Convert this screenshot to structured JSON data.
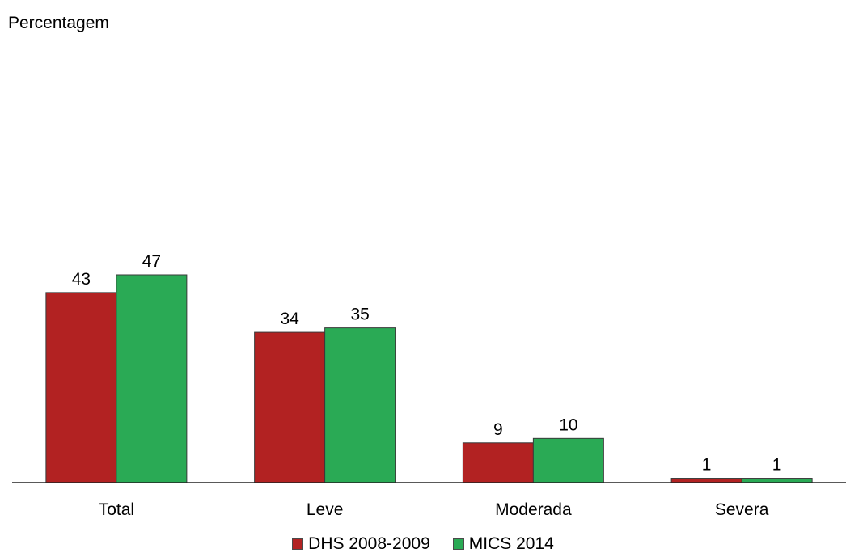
{
  "chart_data": {
    "type": "bar",
    "ylabel": "Percentagem",
    "xlabel": "",
    "title": "",
    "categories": [
      "Total",
      "Leve",
      "Moderada",
      "Severa"
    ],
    "series": [
      {
        "name": "DHS 2008-2009",
        "values": [
          43,
          34,
          9,
          1
        ],
        "color": "#b22222"
      },
      {
        "name": "MICS 2014",
        "values": [
          47,
          35,
          10,
          1
        ],
        "color": "#2aaa55"
      }
    ],
    "data_labels": {
      "DHS 2008-2009": [
        "43",
        "34",
        "9",
        "1"
      ],
      "MICS 2014": [
        "47",
        "35",
        "10",
        "1"
      ]
    },
    "ylim": [
      0,
      47
    ],
    "legend_position": "bottom",
    "grid": false
  }
}
